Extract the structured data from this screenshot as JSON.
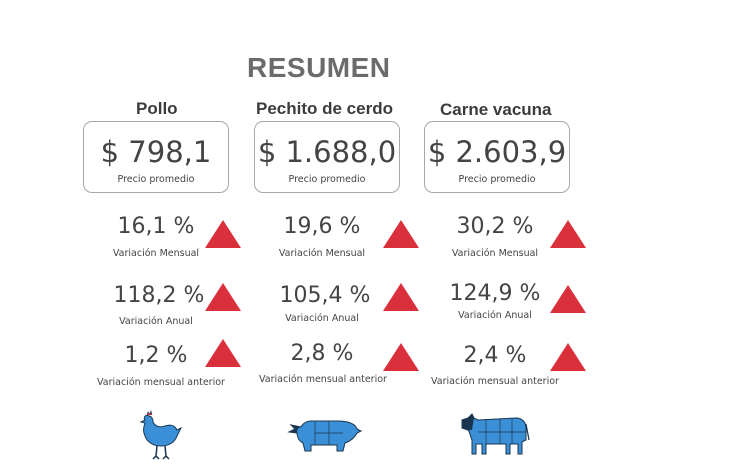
{
  "header": {
    "title": "RESUMEN"
  },
  "products": [
    {
      "name": "Pollo",
      "price": "$ 798,1",
      "price_label": "Precio promedio",
      "monthly_value": "16,1 %",
      "monthly_label": "Variación Mensual",
      "annual_value": "118,2 %",
      "annual_label": "Variación Anual",
      "prev_value": "1,2 %",
      "prev_label": "Variación mensual anterior",
      "icon": "chicken-icon"
    },
    {
      "name": "Pechito de cerdo",
      "price": "$ 1.688,0",
      "price_label": "Precio promedio",
      "monthly_value": "19,6 %",
      "monthly_label": "Variación Mensual",
      "annual_value": "105,4 %",
      "annual_label": "Variación Anual",
      "prev_value": "2,8 %",
      "prev_label": "Variación mensual anterior",
      "icon": "pig-icon"
    },
    {
      "name": "Carne vacuna",
      "price": "$ 2.603,9",
      "price_label": "Precio promedio",
      "monthly_value": "30,2 %",
      "monthly_label": "Variación Mensual",
      "annual_value": "124,9 %",
      "annual_label": "Variación Anual",
      "prev_value": "2,4 %",
      "prev_label": "Variación mensual anterior",
      "icon": "cow-icon"
    }
  ],
  "colors": {
    "increase_arrow": "#d9303c",
    "animal_fill": "#3b8fd6"
  }
}
